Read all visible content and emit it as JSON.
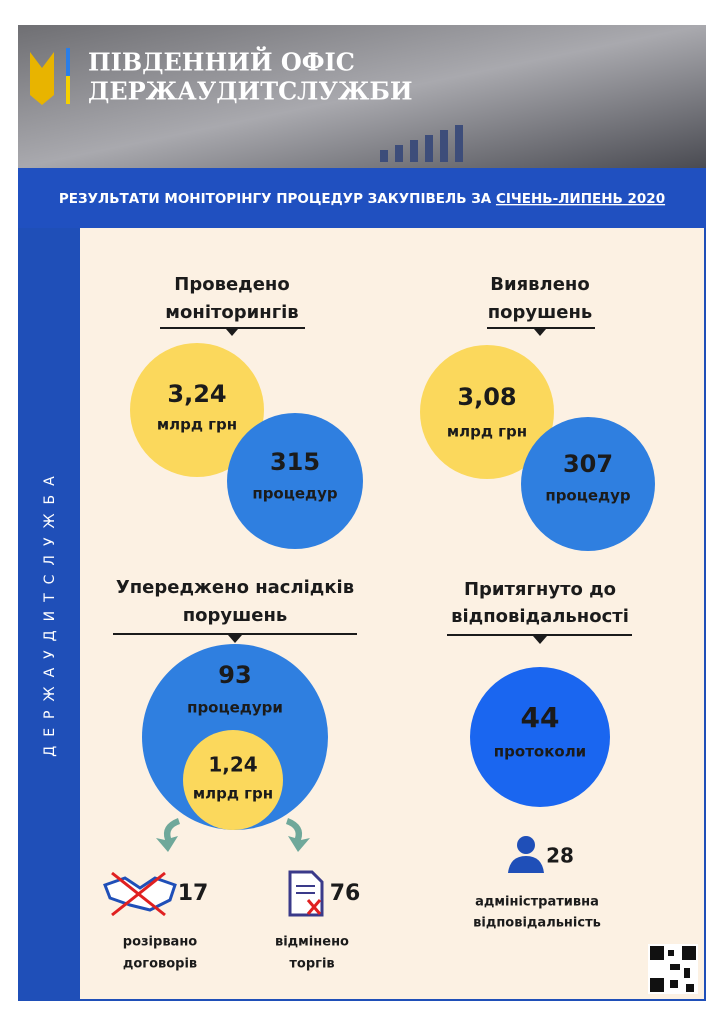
{
  "header": {
    "title_lines": [
      "ПІВДЕННИЙ ОФІС",
      "ДЕРЖАУДИТСЛУЖБИ"
    ]
  },
  "banner": {
    "text": "РЕЗУЛЬТАТИ МОНІТОРІНГУ ПРОЦЕДУР ЗАКУПІВЕЛЬ ЗА ",
    "period": "СІЧЕНЬ-ЛИПЕНЬ 2020"
  },
  "sidebar": "ДЕРЖАУДИТСЛУЖБА",
  "monitorings": {
    "title_lines": [
      "Проведено",
      "моніторингів"
    ],
    "amount": "3,24",
    "amount_unit": "млрд грн",
    "count": 315,
    "count_unit": "процедур"
  },
  "violations": {
    "title_lines": [
      "Виявлено",
      "порушень"
    ],
    "amount": "3,08",
    "amount_unit": "млрд грн",
    "count": 307,
    "count_unit": "процедур"
  },
  "prevented": {
    "title_lines": [
      "Упереджено наслідків",
      "порушень"
    ],
    "count": 93,
    "count_unit": "процедури",
    "amount": "1,24",
    "amount_unit": "млрд грн",
    "terminated": {
      "value": 17,
      "label_lines": [
        "розірвано",
        "договорів"
      ]
    },
    "cancelled": {
      "value": 76,
      "label_lines": [
        "відмінено",
        "торгів"
      ]
    }
  },
  "liability": {
    "title_lines": [
      "Притягнуто до",
      "відповідальності"
    ],
    "count": 44,
    "count_unit": "протоколи",
    "administrative": {
      "value": 28,
      "label_lines": [
        "адміністративна",
        "відповідальність"
      ]
    }
  }
}
